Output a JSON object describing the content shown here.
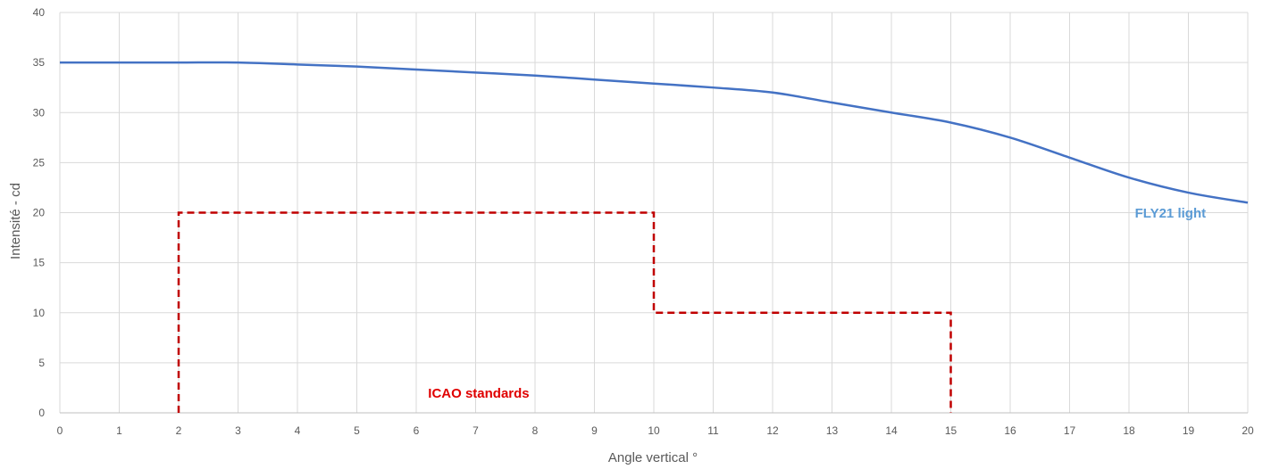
{
  "chart_data": {
    "type": "line",
    "title": "",
    "xlabel": "Angle vertical °",
    "ylabel": "Intensité - cd",
    "xlim": [
      0,
      20
    ],
    "ylim": [
      0,
      40
    ],
    "x_ticks": [
      0,
      1,
      2,
      3,
      4,
      5,
      6,
      7,
      8,
      9,
      10,
      11,
      12,
      13,
      14,
      15,
      16,
      17,
      18,
      19,
      20
    ],
    "y_ticks": [
      0,
      5,
      10,
      15,
      20,
      25,
      30,
      35,
      40
    ],
    "grid": true,
    "series": [
      {
        "name": "FLY21 light",
        "color": "#4472c4",
        "style": "solid",
        "x": [
          0,
          1,
          2,
          3,
          4,
          5,
          6,
          7,
          8,
          9,
          10,
          11,
          12,
          13,
          14,
          15,
          16,
          17,
          18,
          19,
          20
        ],
        "y": [
          35,
          35,
          35,
          35,
          34.8,
          34.6,
          34.3,
          34,
          33.7,
          33.3,
          32.9,
          32.5,
          32,
          31,
          30,
          29,
          27.5,
          25.5,
          23.5,
          22,
          21
        ]
      },
      {
        "name": "ICAO standards",
        "color": "#c00000",
        "style": "dashed",
        "x": [
          2,
          2,
          10,
          10,
          15,
          15
        ],
        "y": [
          0,
          20,
          20,
          10,
          10,
          0
        ]
      }
    ],
    "annotations": [
      {
        "text": "FLY21 light",
        "color": "#5b9bd5",
        "x": 18.1,
        "y": 19.5
      },
      {
        "text": "ICAO standards",
        "color": "#e00000",
        "x": 6.2,
        "y": 1.5
      }
    ]
  }
}
